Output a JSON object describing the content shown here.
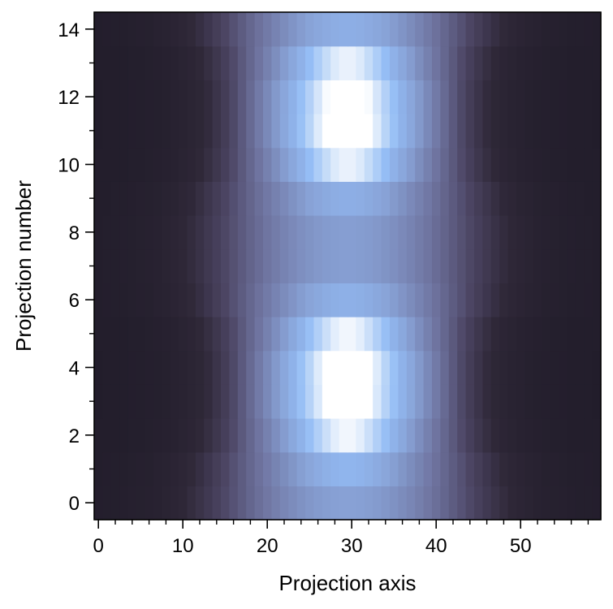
{
  "chart_data": {
    "type": "heatmap",
    "title": "",
    "xlabel": "Projection axis",
    "ylabel": "Projection number",
    "xlim": [
      -0.5,
      59.5
    ],
    "ylim": [
      -0.5,
      14.5
    ],
    "x_ticks": [
      0,
      10,
      20,
      30,
      40,
      50
    ],
    "y_ticks": [
      0,
      2,
      4,
      6,
      8,
      10,
      12,
      14
    ],
    "x_minor_step": 2,
    "y_minor_step": 1,
    "grid": false,
    "colorbar": false,
    "colormap": {
      "name": "cubehelix-like",
      "stops": [
        "#221d2b",
        "#2f2838",
        "#4b4462",
        "#6f74a0",
        "#88a2d6",
        "#93bcf5",
        "#c4dbf8",
        "#ffffff"
      ]
    },
    "n_columns": 60,
    "n_rows": 15,
    "rows": [
      {
        "projection": 0,
        "width": 11.5,
        "peak": 0.45,
        "center_spike": 0.0
      },
      {
        "projection": 1,
        "width": 11.0,
        "peak": 0.48,
        "center_spike": 0.08
      },
      {
        "projection": 2,
        "width": 10.0,
        "peak": 0.55,
        "center_spike": 0.3
      },
      {
        "projection": 3,
        "width": 9.5,
        "peak": 0.62,
        "center_spike": 0.38
      },
      {
        "projection": 4,
        "width": 9.5,
        "peak": 0.62,
        "center_spike": 0.4
      },
      {
        "projection": 5,
        "width": 10.0,
        "peak": 0.55,
        "center_spike": 0.3
      },
      {
        "projection": 6,
        "width": 11.0,
        "peak": 0.48,
        "center_spike": 0.05
      },
      {
        "projection": 7,
        "width": 11.5,
        "peak": 0.44,
        "center_spike": 0.0
      },
      {
        "projection": 8,
        "width": 11.5,
        "peak": 0.44,
        "center_spike": 0.0
      },
      {
        "projection": 9,
        "width": 11.0,
        "peak": 0.47,
        "center_spike": 0.05
      },
      {
        "projection": 10,
        "width": 10.0,
        "peak": 0.55,
        "center_spike": 0.28
      },
      {
        "projection": 11,
        "width": 9.5,
        "peak": 0.62,
        "center_spike": 0.4
      },
      {
        "projection": 12,
        "width": 9.5,
        "peak": 0.62,
        "center_spike": 0.36
      },
      {
        "projection": 13,
        "width": 10.0,
        "peak": 0.55,
        "center_spike": 0.28
      },
      {
        "projection": 14,
        "width": 11.0,
        "peak": 0.48,
        "center_spike": 0.04
      }
    ],
    "center_column": 29.5
  }
}
